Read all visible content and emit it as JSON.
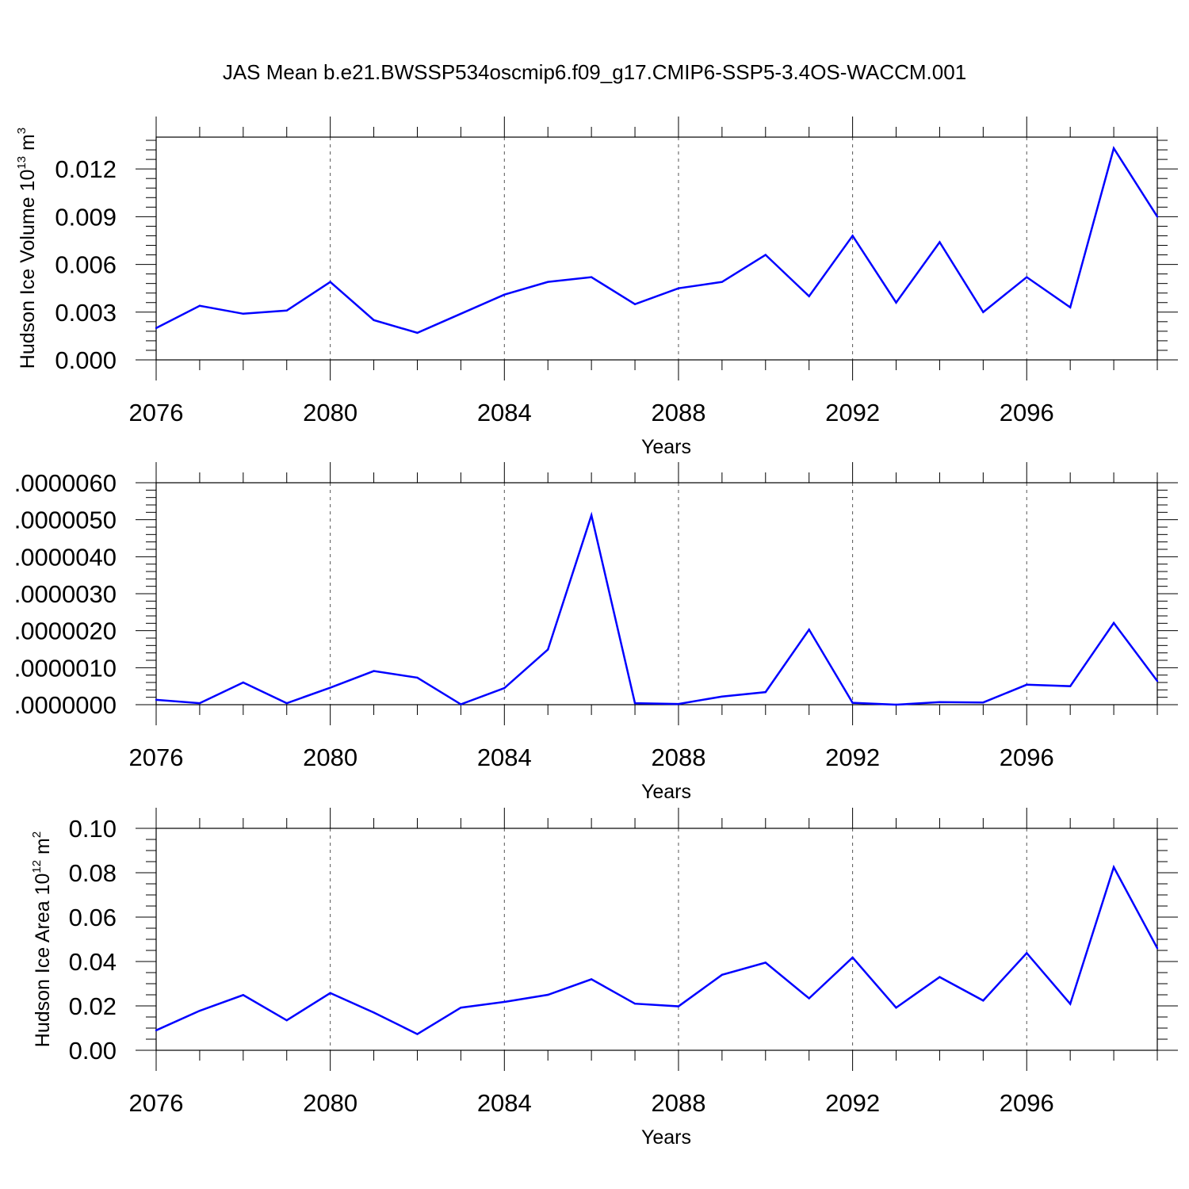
{
  "title": "JAS Mean b.e21.BWSSP534oscmip6.f09_g17.CMIP6-SSP5-3.4OS-WACCM.001",
  "colors": {
    "series": "#0000ff",
    "axes": "#000000",
    "grid": "#555555"
  },
  "chart_data": [
    {
      "type": "line",
      "xlabel": "Years",
      "ylabel": {
        "text": "Hudson Ice Volume 10",
        "sup": "13",
        "unit": " m",
        "unit_sup": "3"
      },
      "xlim": [
        2076,
        2099
      ],
      "ylim": [
        0,
        0.014
      ],
      "x_ticks": [
        2076,
        2080,
        2084,
        2088,
        2092,
        2096
      ],
      "x_tick_labels": [
        "2076",
        "2080",
        "2084",
        "2088",
        "2092",
        "2096"
      ],
      "y_ticks": [
        0,
        0.003,
        0.006,
        0.009,
        0.012
      ],
      "y_tick_labels": [
        "0.000",
        "0.003",
        "0.006",
        "0.009",
        "0.012"
      ],
      "grid": "vertical dashed at x ticks",
      "x": [
        2076,
        2077,
        2078,
        2079,
        2080,
        2081,
        2082,
        2083,
        2084,
        2085,
        2086,
        2087,
        2088,
        2089,
        2090,
        2091,
        2092,
        2093,
        2094,
        2095,
        2096,
        2097,
        2098,
        2099
      ],
      "series": [
        {
          "values": [
            0.002,
            0.0034,
            0.0029,
            0.0031,
            0.0049,
            0.0025,
            0.0017,
            0.0029,
            0.0041,
            0.0049,
            0.0052,
            0.0035,
            0.0045,
            0.0049,
            0.0066,
            0.004,
            0.0078,
            0.0036,
            0.0074,
            0.003,
            0.0052,
            0.0033,
            0.0133,
            0.009
          ]
        }
      ]
    },
    {
      "type": "line",
      "xlabel": "Years",
      "ylabel": null,
      "xlim": [
        2076,
        2099
      ],
      "ylim": [
        0,
        6e-06
      ],
      "x_ticks": [
        2076,
        2080,
        2084,
        2088,
        2092,
        2096
      ],
      "x_tick_labels": [
        "2076",
        "2080",
        "2084",
        "2088",
        "2092",
        "2096"
      ],
      "y_ticks": [
        0,
        1e-06,
        2e-06,
        3e-06,
        4e-06,
        5e-06,
        6e-06
      ],
      "y_tick_labels": [
        ".0000000",
        ".0000010",
        ".0000020",
        ".0000030",
        ".0000040",
        ".0000050",
        ".0000060"
      ],
      "grid": "vertical dashed at x ticks",
      "x": [
        2076,
        2077,
        2078,
        2079,
        2080,
        2081,
        2082,
        2083,
        2084,
        2085,
        2086,
        2087,
        2088,
        2089,
        2090,
        2091,
        2092,
        2093,
        2094,
        2095,
        2096,
        2097,
        2098,
        2099
      ],
      "series": [
        {
          "values": [
            1.3e-07,
            4e-08,
            6e-07,
            4e-08,
            4.6e-07,
            9.1e-07,
            7.3e-07,
            1e-08,
            4.5e-07,
            1.49e-06,
            5.12e-06,
            4e-08,
            2e-08,
            2.2e-07,
            3.4e-07,
            2.03e-06,
            5e-08,
            0.0,
            7e-08,
            6e-08,
            5.4e-07,
            5e-07,
            2.21e-06,
            6.4e-07
          ]
        }
      ]
    },
    {
      "type": "line",
      "xlabel": "Years",
      "ylabel": {
        "text": "Hudson Ice Area 10",
        "sup": "12",
        "unit": " m",
        "unit_sup": "2"
      },
      "xlim": [
        2076,
        2099
      ],
      "ylim": [
        0,
        0.1
      ],
      "x_ticks": [
        2076,
        2080,
        2084,
        2088,
        2092,
        2096
      ],
      "x_tick_labels": [
        "2076",
        "2080",
        "2084",
        "2088",
        "2092",
        "2096"
      ],
      "y_ticks": [
        0,
        0.02,
        0.04,
        0.06,
        0.08,
        0.1
      ],
      "y_tick_labels": [
        "0.00",
        "0.02",
        "0.04",
        "0.06",
        "0.08",
        "0.10"
      ],
      "grid": "vertical dashed at x ticks",
      "x": [
        2076,
        2077,
        2078,
        2079,
        2080,
        2081,
        2082,
        2083,
        2084,
        2085,
        2086,
        2087,
        2088,
        2089,
        2090,
        2091,
        2092,
        2093,
        2094,
        2095,
        2096,
        2097,
        2098,
        2099
      ],
      "series": [
        {
          "values": [
            0.009,
            0.0178,
            0.0249,
            0.0135,
            0.0258,
            0.017,
            0.0073,
            0.0192,
            0.0218,
            0.025,
            0.032,
            0.021,
            0.0198,
            0.034,
            0.0395,
            0.0234,
            0.0418,
            0.0192,
            0.033,
            0.0224,
            0.0438,
            0.0209,
            0.0825,
            0.046
          ]
        }
      ]
    }
  ]
}
